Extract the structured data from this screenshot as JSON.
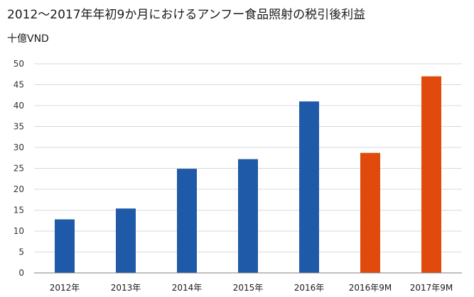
{
  "chart_data": {
    "type": "bar",
    "title": "2012～2017年年初9か月におけるアンフー食品照射の税引後利益",
    "unit_label": "十億VND",
    "categories": [
      "2012年",
      "2013年",
      "2014年",
      "2015年",
      "2016年",
      "2016年9M",
      "2017年9M"
    ],
    "values": [
      12.8,
      15.4,
      24.9,
      27.2,
      41.0,
      28.7,
      47.0
    ],
    "colors": [
      "#1f5aa8",
      "#1f5aa8",
      "#1f5aa8",
      "#1f5aa8",
      "#1f5aa8",
      "#e04a0c",
      "#e04a0c"
    ],
    "yticks": [
      0,
      5,
      10,
      15,
      20,
      25,
      30,
      35,
      40,
      45,
      50
    ],
    "ylim": [
      0,
      50
    ],
    "grid": true,
    "axis_color": "#7f7f7f",
    "grid_color": "#d9d9d9"
  }
}
